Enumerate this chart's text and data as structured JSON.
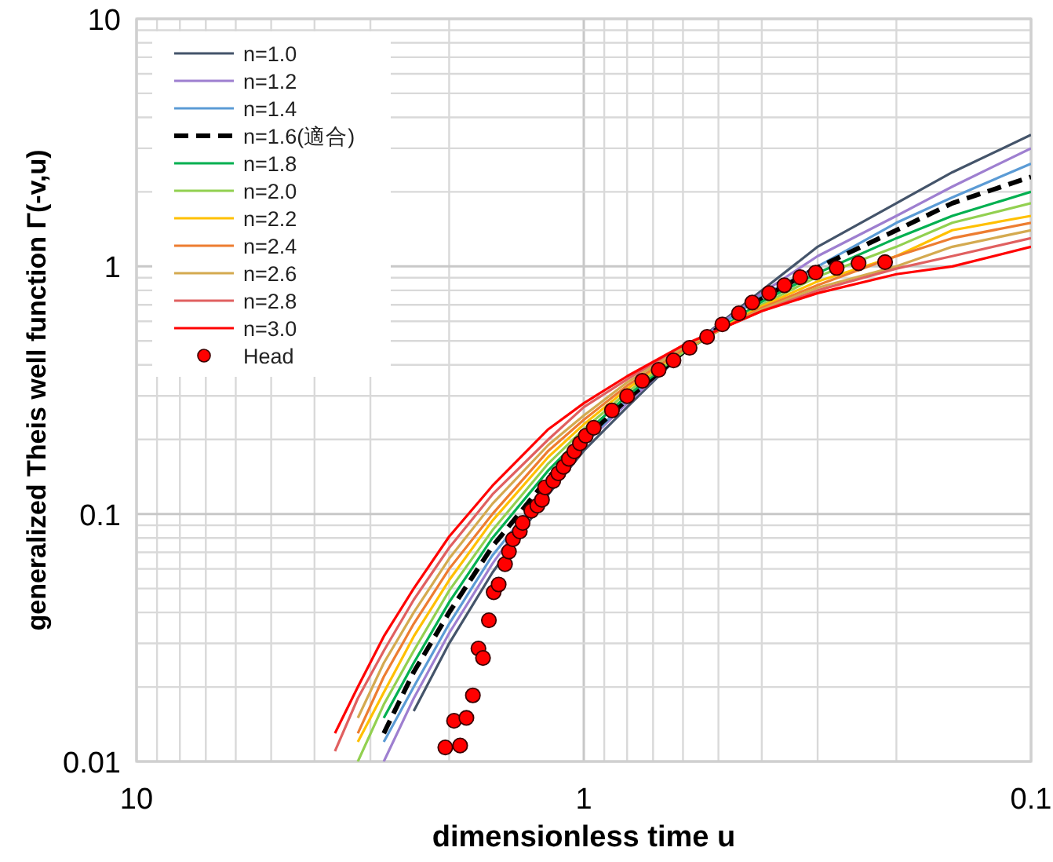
{
  "chart_data": {
    "type": "line",
    "xlabel": "dimensionless time u",
    "ylabel": "generalized Theis well function   Γ(-v,u)",
    "log": "xy",
    "xlim": [
      10,
      0.1
    ],
    "ylim": [
      0.01,
      10
    ],
    "xticks": [
      10,
      1,
      0.1
    ],
    "yticks": [
      0.01,
      0.1,
      1,
      10
    ],
    "grid": true,
    "legend": "top left",
    "x": [
      3.6,
      3.2,
      2.8,
      2.4,
      2,
      1.6,
      1.2,
      1,
      0.8,
      0.6,
      0.4,
      0.3,
      0.2,
      0.15,
      0.1
    ],
    "series": [
      {
        "name": "n=1.0",
        "color": "#44546a",
        "values": [
          null,
          null,
          null,
          0.016,
          0.03,
          0.058,
          0.12,
          0.18,
          0.27,
          0.45,
          0.8,
          1.2,
          1.8,
          2.4,
          3.4
        ]
      },
      {
        "name": "n=1.2",
        "color": "#9e7fd0",
        "values": [
          null,
          null,
          0.01,
          0.018,
          0.033,
          0.063,
          0.13,
          0.19,
          0.28,
          0.45,
          0.78,
          1.1,
          1.6,
          2.1,
          3
        ]
      },
      {
        "name": "n=1.4",
        "color": "#5b9bd5",
        "values": [
          null,
          null,
          0.012,
          0.02,
          0.036,
          0.068,
          0.13,
          0.19,
          0.29,
          0.45,
          0.76,
          1,
          1.5,
          1.9,
          2.6
        ]
      },
      {
        "name": "n=1.6(適合)",
        "color": "#000000",
        "line_style": "dashed",
        "values": [
          null,
          null,
          0.013,
          0.023,
          0.04,
          0.074,
          0.14,
          0.2,
          0.29,
          0.45,
          0.74,
          0.99,
          1.4,
          1.8,
          2.3
        ]
      },
      {
        "name": "n=1.8",
        "color": "#00b050",
        "values": [
          null,
          null,
          0.015,
          0.025,
          0.044,
          0.08,
          0.15,
          0.21,
          0.3,
          0.45,
          0.72,
          0.94,
          1.3,
          1.6,
          2
        ]
      },
      {
        "name": "n=2.0",
        "color": "#92d050",
        "values": [
          null,
          0.01,
          0.017,
          0.028,
          0.049,
          0.086,
          0.16,
          0.22,
          0.31,
          0.45,
          0.7,
          0.91,
          1.2,
          1.5,
          1.8
        ]
      },
      {
        "name": "n=2.2",
        "color": "#ffc000",
        "values": [
          null,
          0.012,
          0.019,
          0.032,
          0.054,
          0.094,
          0.17,
          0.23,
          0.32,
          0.46,
          0.69,
          0.87,
          1.1,
          1.4,
          1.6
        ]
      },
      {
        "name": "n=2.4",
        "color": "#ed7d31",
        "values": [
          null,
          0.013,
          0.022,
          0.036,
          0.06,
          0.1,
          0.18,
          0.24,
          0.33,
          0.46,
          0.68,
          0.84,
          1.1,
          1.3,
          1.5
        ]
      },
      {
        "name": "n=2.6",
        "color": "#d4aa50",
        "values": [
          null,
          0.015,
          0.025,
          0.04,
          0.066,
          0.11,
          0.19,
          0.25,
          0.34,
          0.47,
          0.67,
          0.82,
          1,
          1.2,
          1.4
        ]
      },
      {
        "name": "n=2.8",
        "color": "#e06060",
        "values": [
          0.011,
          0.018,
          0.028,
          0.045,
          0.073,
          0.12,
          0.2,
          0.27,
          0.35,
          0.48,
          0.66,
          0.8,
          0.98,
          1.1,
          1.3
        ]
      },
      {
        "name": "n=3.0",
        "color": "#ff0000",
        "values": [
          0.013,
          0.02,
          0.032,
          0.05,
          0.081,
          0.13,
          0.22,
          0.28,
          0.36,
          0.48,
          0.66,
          0.78,
          0.93,
          1,
          1.2
        ]
      },
      {
        "name": "Head",
        "type": "scatter",
        "marker": "circle",
        "color": "#ff0000",
        "x": [
          2.04,
          1.89,
          1.95,
          1.83,
          1.77,
          1.72,
          1.68,
          1.63,
          1.59,
          1.55,
          1.5,
          1.47,
          1.44,
          1.39,
          1.37,
          1.31,
          1.27,
          1.24,
          1.22,
          1.17,
          1.14,
          1.11,
          1.08,
          1.05,
          1.02,
          0.99,
          0.95,
          0.865,
          0.8,
          0.74,
          0.68,
          0.63,
          0.58,
          0.53,
          0.49,
          0.45,
          0.42,
          0.385,
          0.356,
          0.328,
          0.303,
          0.272,
          0.243,
          0.212
        ],
        "values": [
          0.0114,
          0.0116,
          0.0146,
          0.015,
          0.0185,
          0.0286,
          0.0262,
          0.0372,
          0.0483,
          0.0519,
          0.0627,
          0.0705,
          0.079,
          0.085,
          0.092,
          0.103,
          0.108,
          0.114,
          0.128,
          0.136,
          0.146,
          0.155,
          0.167,
          0.179,
          0.193,
          0.207,
          0.223,
          0.262,
          0.299,
          0.345,
          0.382,
          0.417,
          0.469,
          0.519,
          0.583,
          0.646,
          0.715,
          0.78,
          0.839,
          0.904,
          0.944,
          0.986,
          1.03,
          1.04
        ]
      }
    ]
  }
}
